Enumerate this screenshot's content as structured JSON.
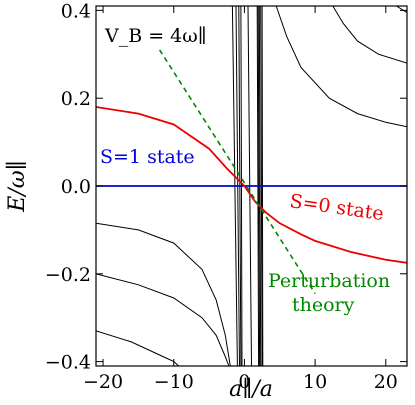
{
  "chart_data": {
    "type": "line",
    "xlabel": "a∥/a",
    "ylabel": "E/ω∥",
    "xlim": [
      -21,
      23
    ],
    "ylim": [
      -0.41,
      0.41
    ],
    "x_ticks": [
      -20,
      -10,
      0,
      10,
      20
    ],
    "x_tick_labels": [
      "−20",
      "−10",
      "0",
      "10",
      "20"
    ],
    "y_ticks": [
      -0.4,
      -0.2,
      0.0,
      0.2,
      0.4
    ],
    "y_tick_labels": [
      "−0.4",
      "−0.2",
      "0.0",
      "0.2",
      "0.4"
    ],
    "grid": false,
    "legend": "none",
    "colors": {
      "s1": "#0000dd",
      "s0": "#ee0000",
      "pert": "#008800",
      "levels": "#000000"
    },
    "annotations": {
      "vb": "V_B = 4ω∥",
      "s1": "S=1 state",
      "s0": "S=0 state",
      "pert_line1": "Perturbation",
      "pert_line2": "theory"
    },
    "series": [
      {
        "key": "s1_state",
        "color": "#0000dd",
        "x": [
          -21,
          23
        ],
        "y": [
          0.0,
          0.0
        ]
      },
      {
        "key": "s0_state",
        "color": "#ee0000",
        "x": [
          -21,
          -15,
          -10,
          -5,
          -2.5,
          0,
          1.5,
          3,
          5,
          8,
          10,
          15,
          20,
          23
        ],
        "y": [
          0.18,
          0.165,
          0.14,
          0.085,
          0.04,
          0.0,
          -0.035,
          -0.06,
          -0.085,
          -0.11,
          -0.125,
          -0.15,
          -0.168,
          -0.175
        ]
      },
      {
        "key": "perturbation",
        "color": "#008800",
        "dashed": true,
        "x": [
          -12,
          10
        ],
        "y": [
          0.31,
          -0.245
        ]
      }
    ],
    "levels": [
      {
        "x": [
          -21,
          -15,
          -10,
          -6,
          -4,
          -2.7,
          -2.0
        ],
        "y": [
          -0.085,
          -0.1,
          -0.13,
          -0.19,
          -0.26,
          -0.34,
          -0.41
        ]
      },
      {
        "x": [
          -21,
          -15,
          -10,
          -6,
          -4,
          -2.8,
          -2.2
        ],
        "y": [
          -0.2,
          -0.225,
          -0.255,
          -0.3,
          -0.34,
          -0.385,
          -0.41
        ]
      },
      {
        "x": [
          -21,
          -16,
          -12,
          -10,
          -9.3
        ],
        "y": [
          -0.33,
          -0.355,
          -0.385,
          -0.4,
          -0.41
        ]
      },
      {
        "x": [
          4.5,
          6,
          8,
          12,
          16,
          20,
          23
        ],
        "y": [
          0.41,
          0.34,
          0.27,
          0.2,
          0.165,
          0.145,
          0.135
        ]
      },
      {
        "x": [
          12.5,
          14,
          16,
          19,
          23
        ],
        "y": [
          0.41,
          0.37,
          0.33,
          0.3,
          0.28
        ]
      },
      {
        "x": [
          21.5,
          23
        ],
        "y": [
          0.41,
          0.395
        ]
      },
      {
        "x": [
          -0.5,
          -0.35
        ],
        "y": [
          0.41,
          -0.41
        ]
      },
      {
        "x": [
          -0.8,
          -0.5
        ],
        "y": [
          0.41,
          -0.41
        ]
      },
      {
        "x": [
          -1.2,
          -0.7
        ],
        "y": [
          0.41,
          -0.41
        ]
      },
      {
        "x": [
          -1.7,
          -1.0
        ],
        "y": [
          0.41,
          -0.41
        ]
      },
      {
        "x": [
          0.5,
          1.0
        ],
        "y": [
          0.41,
          -0.41
        ]
      },
      {
        "x": [
          1.8,
          2.0
        ],
        "y": [
          0.41,
          -0.41
        ]
      },
      {
        "x": [
          1.95,
          2.15
        ],
        "y": [
          0.41,
          -0.41
        ]
      },
      {
        "x": [
          2.1,
          2.3
        ],
        "y": [
          0.41,
          -0.41
        ]
      },
      {
        "x": [
          2.3,
          2.5
        ],
        "y": [
          0.41,
          -0.41
        ]
      },
      {
        "x": [
          2.5,
          2.6
        ],
        "y": [
          0.41,
          -0.41
        ]
      }
    ]
  }
}
